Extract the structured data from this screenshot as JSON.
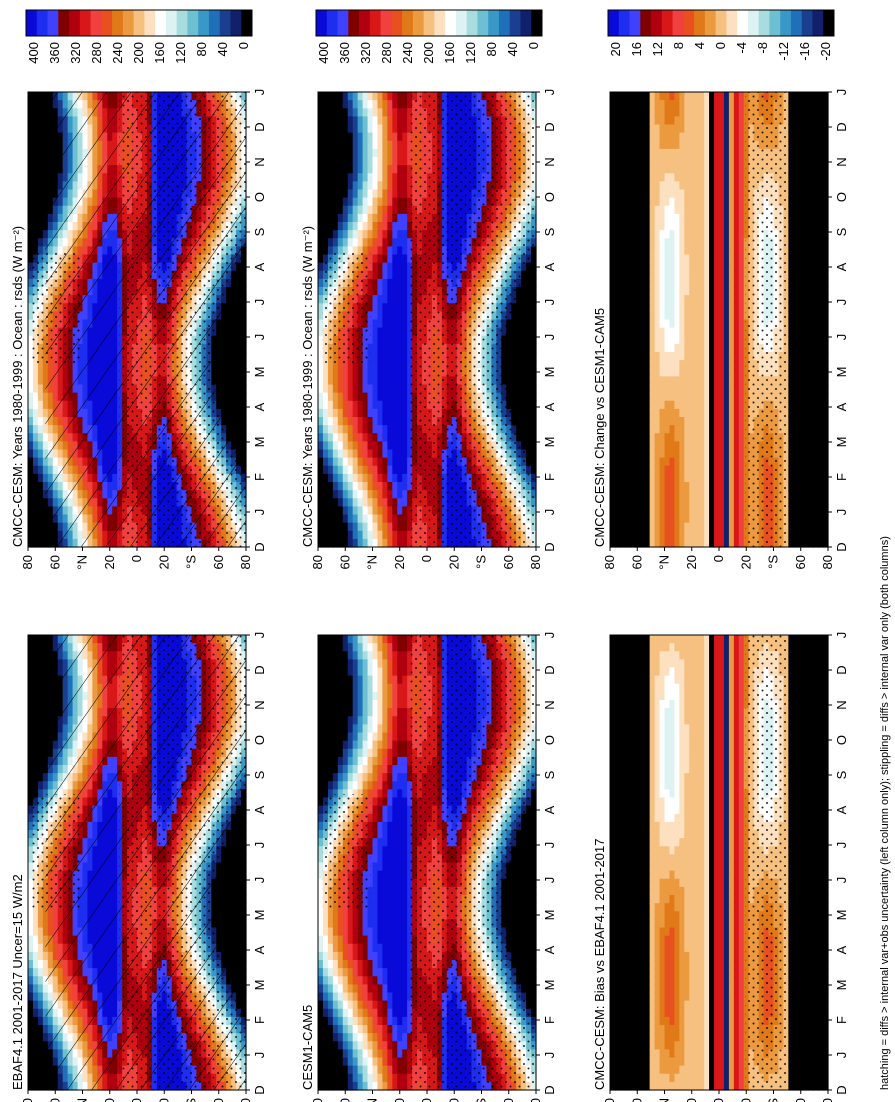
{
  "colorbar_abs": {
    "ticks": [
      "400",
      "360",
      "320",
      "280",
      "240",
      "200",
      "160",
      "120",
      "80",
      "40",
      "0"
    ],
    "colors": [
      "#0a0ad8",
      "#1e2ef0",
      "#4040ff",
      "#800000",
      "#b00010",
      "#d81818",
      "#f04040",
      "#e85020",
      "#e07a18",
      "#ec9a40",
      "#f5c080",
      "#fce0c0",
      "#ffffff",
      "#ddf2f2",
      "#a8dde0",
      "#6cc0d2",
      "#3a98c8",
      "#1f70b8",
      "#1a3f90",
      "#10206a",
      "#000000"
    ]
  },
  "colorbar_diff": {
    "ticks": [
      "20",
      "16",
      "12",
      "8",
      "4",
      "0",
      "-4",
      "-8",
      "-12",
      "-16",
      "-20"
    ],
    "colors": [
      "#0a0ad8",
      "#1e2ef0",
      "#4040ff",
      "#800000",
      "#b00010",
      "#d81818",
      "#f04040",
      "#e85020",
      "#e07a18",
      "#ec9a40",
      "#f5c080",
      "#fce0c0",
      "#ffffff",
      "#ddf2f2",
      "#a8dde0",
      "#6cc0d2",
      "#3a98c8",
      "#1f70b8",
      "#1a3f90",
      "#10206a",
      "#000000"
    ]
  },
  "axes": {
    "lat_ticks": [
      "80",
      "60",
      "°N",
      "20",
      "0",
      "20",
      "°S",
      "60",
      "80"
    ],
    "month_ticks": [
      "D",
      "J",
      "F",
      "M",
      "A",
      "M",
      "J",
      "J",
      "A",
      "S",
      "O",
      "N",
      "D",
      "J"
    ]
  },
  "footer": "hatching = diffs > internal var+obs uncertainty (left column only); stippling = diffs > internal var only (both columns)",
  "panels": [
    {
      "id": "top-left",
      "title": "CMCC-CESM: Years 1980-1999 : Ocean : rsds (W m⁻²)",
      "kind": "abs",
      "hatch": true
    },
    {
      "id": "top-right",
      "title": "CMCC-CESM: Years 1980-1999 : Ocean : rsds (W m⁻²)",
      "kind": "abs",
      "hatch": false
    },
    {
      "id": "mid-left",
      "title": "EBAF4.1 2001-2017 Uncer=15 W/m2",
      "kind": "abs",
      "hatch": true
    },
    {
      "id": "mid-right",
      "title": "CESM1-CAM5",
      "kind": "abs",
      "hatch": false
    },
    {
      "id": "bot-left",
      "title": "CMCC-CESM: Bias vs EBAF4.1 2001-2017",
      "kind": "diff",
      "hatch": false
    },
    {
      "id": "bot-right",
      "title": "CMCC-CESM: Change vs CESM1-CAM5",
      "kind": "diff",
      "hatch": false
    }
  ],
  "chart_data": [
    {
      "type": "heatmap",
      "title": "CMCC-CESM: Years 1980-1999 : Ocean : rsds (W m⁻²)",
      "x_categories": [
        "D",
        "J",
        "F",
        "M",
        "A",
        "M",
        "J",
        "J",
        "A",
        "S",
        "O",
        "N",
        "D",
        "J"
      ],
      "y_ticks": [
        "80",
        "60",
        "°N",
        "20",
        "0",
        "20",
        "°S",
        "60",
        "80"
      ],
      "colorbar_ticks": [
        400,
        360,
        320,
        280,
        240,
        200,
        160,
        120,
        80,
        40,
        0
      ],
      "zlim": [
        0,
        400
      ]
    },
    {
      "type": "heatmap",
      "title": "CMCC-CESM: Years 1980-1999 : Ocean : rsds (W m⁻²)",
      "x_categories": [
        "D",
        "J",
        "F",
        "M",
        "A",
        "M",
        "J",
        "J",
        "A",
        "S",
        "O",
        "N",
        "D",
        "J"
      ],
      "y_ticks": [
        "80",
        "60",
        "°N",
        "20",
        "0",
        "20",
        "°S",
        "60",
        "80"
      ],
      "colorbar_ticks": [
        400,
        360,
        320,
        280,
        240,
        200,
        160,
        120,
        80,
        40,
        0
      ],
      "zlim": [
        0,
        400
      ]
    },
    {
      "type": "heatmap",
      "title": "EBAF4.1 2001-2017 Uncer=15 W/m2",
      "x_categories": [
        "D",
        "J",
        "F",
        "M",
        "A",
        "M",
        "J",
        "J",
        "A",
        "S",
        "O",
        "N",
        "D",
        "J"
      ],
      "y_ticks": [
        "80",
        "60",
        "°N",
        "20",
        "0",
        "20",
        "°S",
        "60",
        "80"
      ],
      "colorbar_ticks": [
        400,
        360,
        320,
        280,
        240,
        200,
        160,
        120,
        80,
        40,
        0
      ],
      "zlim": [
        0,
        400
      ]
    },
    {
      "type": "heatmap",
      "title": "CESM1-CAM5",
      "x_categories": [
        "D",
        "J",
        "F",
        "M",
        "A",
        "M",
        "J",
        "J",
        "A",
        "S",
        "O",
        "N",
        "D",
        "J"
      ],
      "y_ticks": [
        "80",
        "60",
        "°N",
        "20",
        "0",
        "20",
        "°S",
        "60",
        "80"
      ],
      "colorbar_ticks": [
        400,
        360,
        320,
        280,
        240,
        200,
        160,
        120,
        80,
        40,
        0
      ],
      "zlim": [
        0,
        400
      ]
    },
    {
      "type": "heatmap",
      "title": "CMCC-CESM: Bias vs EBAF4.1 2001-2017",
      "x_categories": [
        "D",
        "J",
        "F",
        "M",
        "A",
        "M",
        "J",
        "J",
        "A",
        "S",
        "O",
        "N",
        "D",
        "J"
      ],
      "y_ticks": [
        "80",
        "60",
        "°N",
        "20",
        "0",
        "20",
        "°S",
        "60",
        "80"
      ],
      "colorbar_ticks": [
        20,
        16,
        12,
        8,
        4,
        0,
        -4,
        -8,
        -12,
        -16,
        -20
      ],
      "zlim": [
        -20,
        20
      ]
    },
    {
      "type": "heatmap",
      "title": "CMCC-CESM: Change vs CESM1-CAM5",
      "x_categories": [
        "D",
        "J",
        "F",
        "M",
        "A",
        "M",
        "J",
        "J",
        "A",
        "S",
        "O",
        "N",
        "D",
        "J"
      ],
      "y_ticks": [
        "80",
        "60",
        "°N",
        "20",
        "0",
        "20",
        "°S",
        "60",
        "80"
      ],
      "colorbar_ticks": [
        20,
        16,
        12,
        8,
        4,
        0,
        -4,
        -8,
        -12,
        -16,
        -20
      ],
      "zlim": [
        -20,
        20
      ]
    }
  ]
}
